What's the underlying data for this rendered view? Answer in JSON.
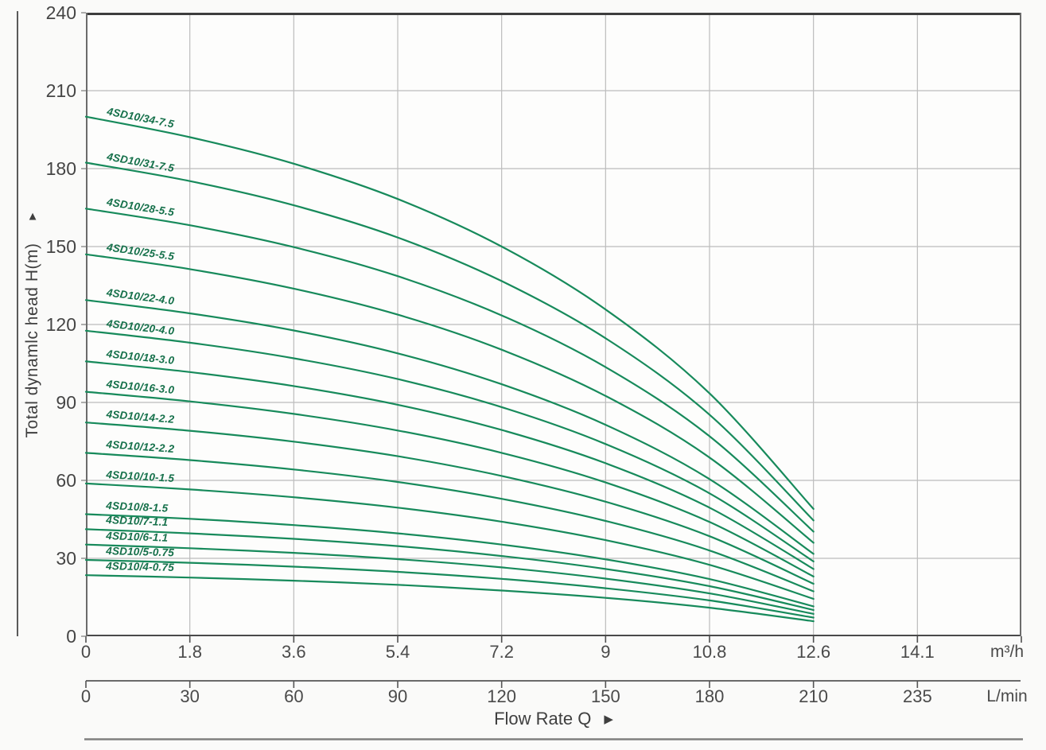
{
  "chart_data": {
    "type": "line",
    "x_axis": {
      "label": "Flow Rate Q",
      "arrow": "▶",
      "unit_primary": "m³/h",
      "ticks_primary": [
        "0",
        "1.8",
        "3.6",
        "5.4",
        "7.2",
        "9",
        "10.8",
        "12.6",
        "14.1"
      ],
      "unit_secondary": "L/min",
      "ticks_secondary": [
        "0",
        "30",
        "60",
        "90",
        "120",
        "150",
        "180",
        "210",
        "235"
      ]
    },
    "y_axis": {
      "label": "Total dynamlc head H(m)",
      "arrow": "▲",
      "ticks": [
        "0",
        "30",
        "60",
        "90",
        "120",
        "150",
        "180",
        "210",
        "240"
      ],
      "range": [
        0,
        240
      ]
    },
    "x_values_m3h": [
      0,
      1.8,
      3.6,
      5.4,
      7.2,
      9,
      10.8,
      12.6
    ],
    "series": [
      {
        "name": "4SD10/34-7.5",
        "stages": 34,
        "values": [
          200.0,
          192.1,
          181.9,
          168.3,
          150.0,
          125.8,
          93.5,
          49.0
        ]
      },
      {
        "name": "4SD10/31-7.5",
        "stages": 31,
        "values": [
          182.3,
          175.2,
          165.9,
          153.5,
          136.7,
          114.7,
          85.3,
          44.6
        ]
      },
      {
        "name": "4SD10/28-5.5",
        "stages": 28,
        "values": [
          164.6,
          158.2,
          149.8,
          138.6,
          123.5,
          103.6,
          77.0,
          40.3
        ]
      },
      {
        "name": "4SD10/25-5.5",
        "stages": 25,
        "values": [
          147.0,
          141.3,
          133.8,
          123.8,
          110.3,
          92.5,
          68.8,
          36.0
        ]
      },
      {
        "name": "4SD10/22-4.0",
        "stages": 22,
        "values": [
          129.4,
          124.3,
          117.7,
          108.9,
          97.0,
          81.4,
          60.5,
          31.7
        ]
      },
      {
        "name": "4SD10/20-4.0",
        "stages": 20,
        "values": [
          117.6,
          113.0,
          107.0,
          99.0,
          88.2,
          74.0,
          55.0,
          28.8
        ]
      },
      {
        "name": "4SD10/18-3.0",
        "stages": 18,
        "values": [
          105.8,
          101.7,
          96.3,
          89.1,
          79.4,
          66.6,
          49.5,
          25.9
        ]
      },
      {
        "name": "4SD10/16-3.0",
        "stages": 16,
        "values": [
          94.1,
          90.4,
          85.6,
          79.2,
          70.6,
          59.2,
          44.0,
          23.0
        ]
      },
      {
        "name": "4SD10/14-2.2",
        "stages": 14,
        "values": [
          82.3,
          79.1,
          74.9,
          69.3,
          61.7,
          51.8,
          38.5,
          20.2
        ]
      },
      {
        "name": "4SD10/12-2.2",
        "stages": 12,
        "values": [
          70.6,
          67.8,
          64.2,
          59.4,
          52.9,
          44.4,
          33.0,
          17.3
        ]
      },
      {
        "name": "4SD10/10-1.5",
        "stages": 10,
        "values": [
          58.8,
          56.5,
          53.5,
          49.5,
          44.1,
          37.0,
          27.5,
          14.4
        ]
      },
      {
        "name": "4SD10/8-1.5",
        "stages": 8,
        "values": [
          47.0,
          45.2,
          42.8,
          39.6,
          35.3,
          29.6,
          22.0,
          11.5
        ]
      },
      {
        "name": "4SD10/7-1.1",
        "stages": 7,
        "values": [
          41.2,
          39.6,
          37.5,
          34.7,
          30.9,
          25.9,
          19.3,
          10.1
        ]
      },
      {
        "name": "4SD10/6-1.1",
        "stages": 6,
        "values": [
          35.3,
          33.9,
          32.1,
          29.7,
          26.5,
          22.2,
          16.5,
          8.6
        ]
      },
      {
        "name": "4SD10/5-0.75",
        "stages": 5,
        "values": [
          29.4,
          28.3,
          26.8,
          24.8,
          22.1,
          18.5,
          13.8,
          7.2
        ]
      },
      {
        "name": "4SD10/4-0.75",
        "stages": 4,
        "values": [
          23.5,
          22.6,
          21.4,
          19.8,
          17.6,
          14.8,
          11.0,
          5.8
        ]
      }
    ],
    "colors": {
      "curve": "#178a5b",
      "curve_label": "#15704a",
      "grid": "#bcbcbc",
      "border": "#6b6b6b",
      "border_strong": "#3e3e3e",
      "axis": "#4f4f4f",
      "text": "#414141",
      "plot_bg": "#fdfdfc"
    }
  }
}
